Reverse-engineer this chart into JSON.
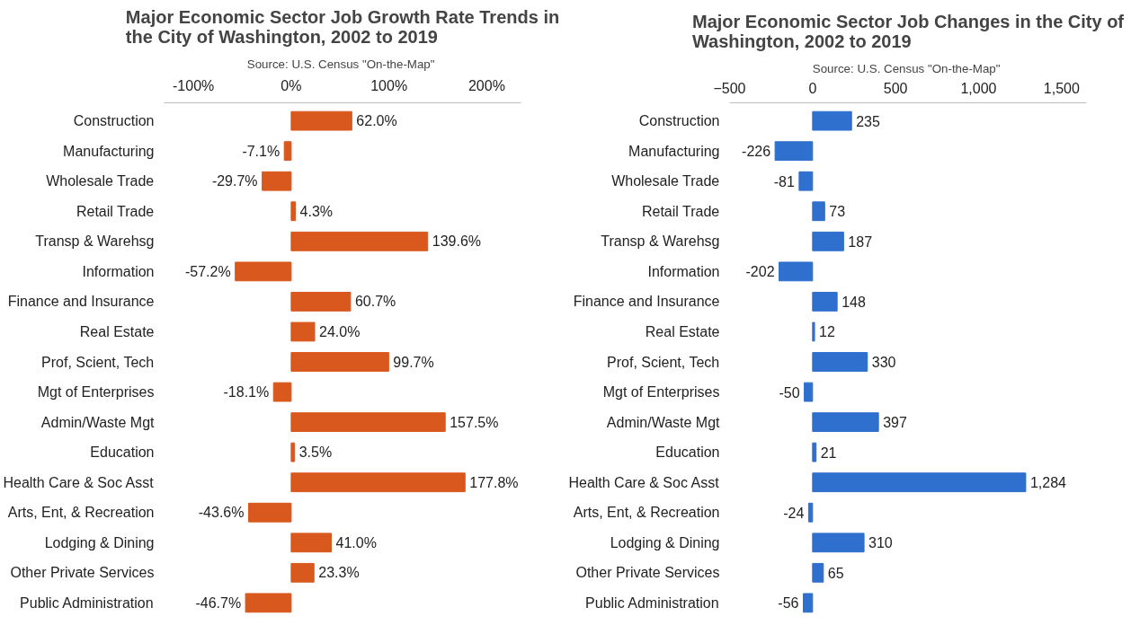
{
  "chart_data": [
    {
      "type": "bar",
      "orientation": "horizontal",
      "title": "Major Economic Sector Job Growth Rate Trends in the City of Washington, 2002 to 2019",
      "subtitle": "Source:  U.S. Census \"On-the-Map\"",
      "categories": [
        "Construction",
        "Manufacturing",
        "Wholesale Trade",
        "Retail Trade",
        "Transp & Warehsg",
        "Information",
        "Finance and Insurance",
        "Real Estate",
        "Prof, Scient, Tech",
        "Mgt of Enterprises",
        "Admin/Waste Mgt",
        "Education",
        "Health Care & Soc Asst",
        "Arts, Ent, & Recreation",
        "Lodging & Dining",
        "Other Private Services",
        "Public Administration"
      ],
      "values": [
        62.0,
        -7.1,
        -29.7,
        4.3,
        139.6,
        -57.2,
        60.7,
        24.0,
        99.7,
        -18.1,
        157.5,
        3.5,
        177.8,
        -43.6,
        41.0,
        23.3,
        -46.7
      ],
      "value_labels": [
        "62.0%",
        "-7.1%",
        "-29.7%",
        "4.3%",
        "139.6%",
        "-57.2%",
        "60.7%",
        "24.0%",
        "99.7%",
        "-18.1%",
        "157.5%",
        "3.5%",
        "177.8%",
        "-43.6%",
        "41.0%",
        "23.3%",
        "-46.7%"
      ],
      "color": "#d9581e",
      "xlim": [
        -130,
        235
      ],
      "xticks": [
        {
          "value": -100,
          "label": "-100%"
        },
        {
          "value": 0,
          "label": "0%"
        },
        {
          "value": 100,
          "label": "100%"
        },
        {
          "value": 200,
          "label": "200%"
        }
      ],
      "grid": false
    },
    {
      "type": "bar",
      "orientation": "horizontal",
      "title": "Major Economic Sector Job Changes in the City of Washington, 2002 to 2019",
      "subtitle": "Source:  U.S. Census \"On-the-Map\"",
      "categories": [
        "Construction",
        "Manufacturing",
        "Wholesale Trade",
        "Retail Trade",
        "Transp & Warehsg",
        "Information",
        "Finance and Insurance",
        "Real Estate",
        "Prof, Scient, Tech",
        "Mgt of Enterprises",
        "Admin/Waste Mgt",
        "Education",
        "Health Care & Soc Asst",
        "Arts, Ent, & Recreation",
        "Lodging & Dining",
        "Other Private Services",
        "Public Administration"
      ],
      "values": [
        235,
        -226,
        -81,
        73,
        187,
        -202,
        148,
        12,
        330,
        -50,
        397,
        21,
        1284,
        -24,
        310,
        65,
        -56
      ],
      "value_labels": [
        "235",
        "-226",
        "-81",
        "73",
        "187",
        "-202",
        "148",
        "12",
        "330",
        "-50",
        "397",
        "21",
        "1,284",
        "-24",
        "310",
        "65",
        "-56"
      ],
      "color": "#2f6fce",
      "xlim": [
        -500,
        1650
      ],
      "xticks": [
        -500,
        0,
        500,
        {
          "value": 1000,
          "label": "1,000"
        },
        {
          "value": 1500,
          "label": "1,500"
        }
      ],
      "grid": false
    }
  ]
}
